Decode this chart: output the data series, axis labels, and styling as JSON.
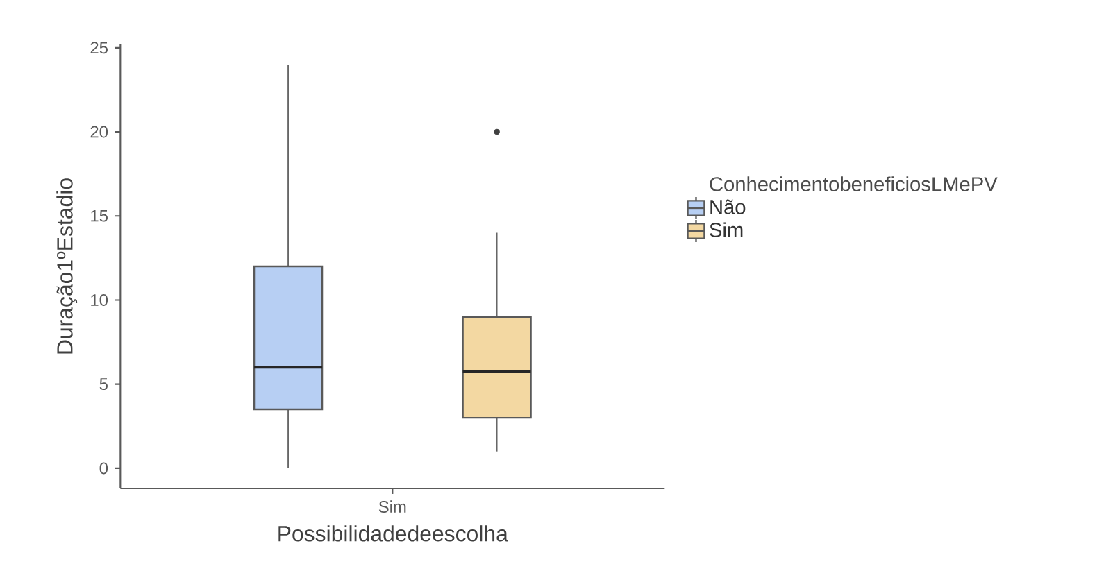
{
  "chart_data": {
    "type": "box",
    "xlabel": "Possibilidadedeescolha",
    "ylabel": "Duração1ºEstadio",
    "legend_title": "ConhecimentobeneficiosLMePV",
    "categories": [
      "Sim"
    ],
    "series": [
      {
        "name": "Não",
        "color": "#b7cff3",
        "boxes": [
          {
            "low": 0,
            "q1": 3.5,
            "median": 6,
            "q3": 12,
            "high": 24
          }
        ]
      },
      {
        "name": "Sim",
        "color": "#f3d8a2",
        "boxes": [
          {
            "low": 1,
            "q1": 3,
            "median": 5.75,
            "q3": 9,
            "high": 14,
            "outliers": [
              20
            ]
          }
        ]
      }
    ],
    "ylim": [
      -1.2,
      25.2
    ],
    "yticks": [
      0,
      5,
      10,
      15,
      20,
      25
    ],
    "grid": false,
    "legend": "right"
  }
}
